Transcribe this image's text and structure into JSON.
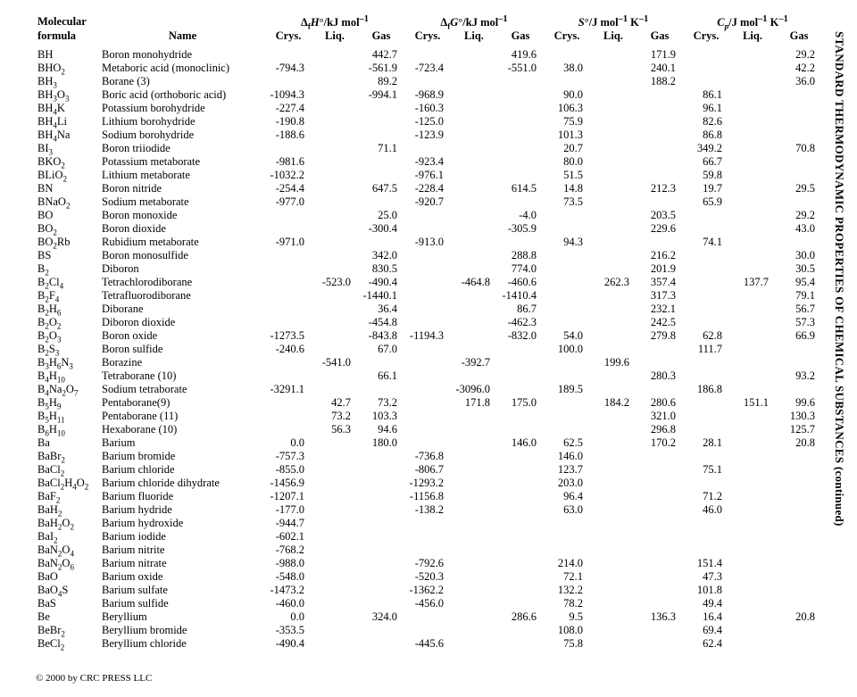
{
  "side_title": "STANDARD THERMODYNAMIC PROPERTIES OF CHEMICAL SUBSTANCES (continued)",
  "footer": "© 2000 by CRC PRESS LLC",
  "header_groups": [
    "Molecular",
    "Δ_fH°/kJ mol⁻¹",
    "Δ_fG°/kJ mol⁻¹",
    "S°/J mol⁻¹ K⁻¹",
    "C_p/J mol⁻¹ K⁻¹"
  ],
  "header_sub": [
    "formula",
    "Name",
    "Crys.",
    "Liq.",
    "Gas",
    "Crys.",
    "Liq.",
    "Gas",
    "Crys.",
    "Liq.",
    "Gas",
    "Crys.",
    "Liq.",
    "Gas"
  ],
  "rows": [
    {
      "f": "BH",
      "n": "Boron monohydride",
      "v": [
        "",
        "",
        "442.7",
        "",
        "",
        "419.6",
        "",
        "",
        "171.9",
        "",
        "",
        "29.2"
      ]
    },
    {
      "f": "BHO<sub>2</sub>",
      "n": "Metaboric acid (monoclinic)",
      "v": [
        "-794.3",
        "",
        "-561.9",
        "-723.4",
        "",
        "-551.0",
        "38.0",
        "",
        "240.1",
        "",
        "",
        "42.2"
      ]
    },
    {
      "f": "BH<sub>3</sub>",
      "n": "Borane (3)",
      "v": [
        "",
        "",
        "89.2",
        "",
        "",
        "",
        "",
        "",
        "188.2",
        "",
        "",
        "36.0"
      ]
    },
    {
      "f": "BH<sub>3</sub>O<sub>3</sub>",
      "n": "Boric acid (orthoboric acid)",
      "v": [
        "-1094.3",
        "",
        "-994.1",
        "-968.9",
        "",
        "",
        "90.0",
        "",
        "",
        "86.1",
        "",
        ""
      ]
    },
    {
      "f": "BH<sub>4</sub>K",
      "n": "Potassium borohydride",
      "v": [
        "-227.4",
        "",
        "",
        "-160.3",
        "",
        "",
        "106.3",
        "",
        "",
        "96.1",
        "",
        ""
      ]
    },
    {
      "f": "BH<sub>4</sub>Li",
      "n": "Lithium borohydride",
      "v": [
        "-190.8",
        "",
        "",
        "-125.0",
        "",
        "",
        "75.9",
        "",
        "",
        "82.6",
        "",
        ""
      ]
    },
    {
      "f": "BH<sub>4</sub>Na",
      "n": "Sodium borohydride",
      "v": [
        "-188.6",
        "",
        "",
        "-123.9",
        "",
        "",
        "101.3",
        "",
        "",
        "86.8",
        "",
        ""
      ]
    },
    {
      "f": "BI<sub>3</sub>",
      "n": "Boron triiodide",
      "v": [
        "",
        "",
        "71.1",
        "",
        "",
        "",
        "20.7",
        "",
        "",
        "349.2",
        "",
        "70.8"
      ]
    },
    {
      "f": "BKO<sub>2</sub>",
      "n": "Potassium metaborate",
      "v": [
        "-981.6",
        "",
        "",
        "-923.4",
        "",
        "",
        "80.0",
        "",
        "",
        "66.7",
        "",
        ""
      ]
    },
    {
      "f": "BLiO<sub>2</sub>",
      "n": "Lithium metaborate",
      "v": [
        "-1032.2",
        "",
        "",
        "-976.1",
        "",
        "",
        "51.5",
        "",
        "",
        "59.8",
        "",
        ""
      ]
    },
    {
      "f": "BN",
      "n": "Boron nitride",
      "v": [
        "-254.4",
        "",
        "647.5",
        "-228.4",
        "",
        "614.5",
        "14.8",
        "",
        "212.3",
        "19.7",
        "",
        "29.5"
      ]
    },
    {
      "f": "BNaO<sub>2</sub>",
      "n": "Sodium metaborate",
      "v": [
        "-977.0",
        "",
        "",
        "-920.7",
        "",
        "",
        "73.5",
        "",
        "",
        "65.9",
        "",
        ""
      ]
    },
    {
      "f": "BO",
      "n": "Boron monoxide",
      "v": [
        "",
        "",
        "25.0",
        "",
        "",
        "-4.0",
        "",
        "",
        "203.5",
        "",
        "",
        "29.2"
      ]
    },
    {
      "f": "BO<sub>2</sub>",
      "n": "Boron dioxide",
      "v": [
        "",
        "",
        "-300.4",
        "",
        "",
        "-305.9",
        "",
        "",
        "229.6",
        "",
        "",
        "43.0"
      ]
    },
    {
      "f": "BO<sub>2</sub>Rb",
      "n": "Rubidium metaborate",
      "v": [
        "-971.0",
        "",
        "",
        "-913.0",
        "",
        "",
        "94.3",
        "",
        "",
        "74.1",
        "",
        ""
      ]
    },
    {
      "f": "BS",
      "n": "Boron monosulfide",
      "v": [
        "",
        "",
        "342.0",
        "",
        "",
        "288.8",
        "",
        "",
        "216.2",
        "",
        "",
        "30.0"
      ]
    },
    {
      "f": "B<sub>2</sub>",
      "n": "Diboron",
      "v": [
        "",
        "",
        "830.5",
        "",
        "",
        "774.0",
        "",
        "",
        "201.9",
        "",
        "",
        "30.5"
      ]
    },
    {
      "f": "B<sub>2</sub>Cl<sub>4</sub>",
      "n": "Tetrachlorodiborane",
      "v": [
        "",
        "-523.0",
        "-490.4",
        "",
        "-464.8",
        "-460.6",
        "",
        "262.3",
        "357.4",
        "",
        "137.7",
        "95.4"
      ]
    },
    {
      "f": "B<sub>2</sub>F<sub>4</sub>",
      "n": "Tetrafluorodiborane",
      "v": [
        "",
        "",
        "-1440.1",
        "",
        "",
        "-1410.4",
        "",
        "",
        "317.3",
        "",
        "",
        "79.1"
      ]
    },
    {
      "f": "B<sub>2</sub>H<sub>6</sub>",
      "n": "Diborane",
      "v": [
        "",
        "",
        "36.4",
        "",
        "",
        "86.7",
        "",
        "",
        "232.1",
        "",
        "",
        "56.7"
      ]
    },
    {
      "f": "B<sub>2</sub>O<sub>2</sub>",
      "n": "Diboron dioxide",
      "v": [
        "",
        "",
        "-454.8",
        "",
        "",
        "-462.3",
        "",
        "",
        "242.5",
        "",
        "",
        "57.3"
      ]
    },
    {
      "f": "B<sub>2</sub>O<sub>3</sub>",
      "n": "Boron oxide",
      "v": [
        "-1273.5",
        "",
        "-843.8",
        "-1194.3",
        "",
        "-832.0",
        "54.0",
        "",
        "279.8",
        "62.8",
        "",
        "66.9"
      ]
    },
    {
      "f": "B<sub>2</sub>S<sub>3</sub>",
      "n": "Boron sulfide",
      "v": [
        "-240.6",
        "",
        "67.0",
        "",
        "",
        "",
        "100.0",
        "",
        "",
        "111.7",
        "",
        ""
      ]
    },
    {
      "f": "B<sub>3</sub>H<sub>6</sub>N<sub>3</sub>",
      "n": "Borazine",
      "v": [
        "",
        "-541.0",
        "",
        "",
        "-392.7",
        "",
        "",
        "199.6",
        "",
        "",
        "",
        ""
      ]
    },
    {
      "f": "B<sub>4</sub>H<sub>10</sub>",
      "n": "Tetraborane (10)",
      "v": [
        "",
        "",
        "66.1",
        "",
        "",
        "",
        "",
        "",
        "280.3",
        "",
        "",
        "93.2"
      ]
    },
    {
      "f": "B<sub>4</sub>Na<sub>2</sub>O<sub>7</sub>",
      "n": "Sodium tetraborate",
      "v": [
        "-3291.1",
        "",
        "",
        "",
        "-3096.0",
        "",
        "189.5",
        "",
        "",
        "186.8",
        "",
        ""
      ]
    },
    {
      "f": "B<sub>5</sub>H<sub>9</sub>",
      "n": "Pentaborane(9)",
      "v": [
        "",
        "42.7",
        "73.2",
        "",
        "171.8",
        "175.0",
        "",
        "184.2",
        "280.6",
        "",
        "151.1",
        "99.6"
      ]
    },
    {
      "f": "B<sub>5</sub>H<sub>11</sub>",
      "n": "Pentaborane (11)",
      "v": [
        "",
        "73.2",
        "103.3",
        "",
        "",
        "",
        "",
        "",
        "321.0",
        "",
        "",
        "130.3"
      ]
    },
    {
      "f": "B<sub>6</sub>H<sub>10</sub>",
      "n": "Hexaborane (10)",
      "v": [
        "",
        "56.3",
        "94.6",
        "",
        "",
        "",
        "",
        "",
        "296.8",
        "",
        "",
        "125.7"
      ]
    },
    {
      "f": "Ba",
      "n": "Barium",
      "v": [
        "0.0",
        "",
        "180.0",
        "",
        "",
        "146.0",
        "62.5",
        "",
        "170.2",
        "28.1",
        "",
        "20.8"
      ]
    },
    {
      "f": "BaBr<sub>2</sub>",
      "n": "Barium bromide",
      "v": [
        "-757.3",
        "",
        "",
        "-736.8",
        "",
        "",
        "146.0",
        "",
        "",
        "",
        "",
        ""
      ]
    },
    {
      "f": "BaCl<sub>2</sub>",
      "n": "Barium chloride",
      "v": [
        "-855.0",
        "",
        "",
        "-806.7",
        "",
        "",
        "123.7",
        "",
        "",
        "75.1",
        "",
        ""
      ]
    },
    {
      "f": "BaCl<sub>2</sub>H<sub>4</sub>O<sub>2</sub>",
      "n": "Barium chloride dihydrate",
      "v": [
        "-1456.9",
        "",
        "",
        "-1293.2",
        "",
        "",
        "203.0",
        "",
        "",
        "",
        "",
        ""
      ]
    },
    {
      "f": "BaF<sub>2</sub>",
      "n": "Barium fluoride",
      "v": [
        "-1207.1",
        "",
        "",
        "-1156.8",
        "",
        "",
        "96.4",
        "",
        "",
        "71.2",
        "",
        ""
      ]
    },
    {
      "f": "BaH<sub>2</sub>",
      "n": "Barium hydride",
      "v": [
        "-177.0",
        "",
        "",
        "-138.2",
        "",
        "",
        "63.0",
        "",
        "",
        "46.0",
        "",
        ""
      ]
    },
    {
      "f": "BaH<sub>2</sub>O<sub>2</sub>",
      "n": "Barium hydroxide",
      "v": [
        "-944.7",
        "",
        "",
        "",
        "",
        "",
        "",
        "",
        "",
        "",
        "",
        ""
      ]
    },
    {
      "f": "BaI<sub>2</sub>",
      "n": "Barium iodide",
      "v": [
        "-602.1",
        "",
        "",
        "",
        "",
        "",
        "",
        "",
        "",
        "",
        "",
        ""
      ]
    },
    {
      "f": "BaN<sub>2</sub>O<sub>4</sub>",
      "n": "Barium nitrite",
      "v": [
        "-768.2",
        "",
        "",
        "",
        "",
        "",
        "",
        "",
        "",
        "",
        "",
        ""
      ]
    },
    {
      "f": "BaN<sub>2</sub>O<sub>6</sub>",
      "n": "Barium nitrate",
      "v": [
        "-988.0",
        "",
        "",
        "-792.6",
        "",
        "",
        "214.0",
        "",
        "",
        "151.4",
        "",
        ""
      ]
    },
    {
      "f": "BaO",
      "n": "Barium oxide",
      "v": [
        "-548.0",
        "",
        "",
        "-520.3",
        "",
        "",
        "72.1",
        "",
        "",
        "47.3",
        "",
        ""
      ]
    },
    {
      "f": "BaO<sub>4</sub>S",
      "n": "Barium sulfate",
      "v": [
        "-1473.2",
        "",
        "",
        "-1362.2",
        "",
        "",
        "132.2",
        "",
        "",
        "101.8",
        "",
        ""
      ]
    },
    {
      "f": "BaS",
      "n": "Barium sulfide",
      "v": [
        "-460.0",
        "",
        "",
        "-456.0",
        "",
        "",
        "78.2",
        "",
        "",
        "49.4",
        "",
        ""
      ]
    },
    {
      "f": "Be",
      "n": "Beryllium",
      "v": [
        "0.0",
        "",
        "324.0",
        "",
        "",
        "286.6",
        "9.5",
        "",
        "136.3",
        "16.4",
        "",
        "20.8"
      ]
    },
    {
      "f": "BeBr<sub>2</sub>",
      "n": "Beryllium bromide",
      "v": [
        "-353.5",
        "",
        "",
        "",
        "",
        "",
        "108.0",
        "",
        "",
        "69.4",
        "",
        ""
      ]
    },
    {
      "f": "BeCl<sub>2</sub>",
      "n": "Beryllium chloride",
      "v": [
        "-490.4",
        "",
        "",
        "-445.6",
        "",
        "",
        "75.8",
        "",
        "",
        "62.4",
        "",
        ""
      ]
    }
  ]
}
